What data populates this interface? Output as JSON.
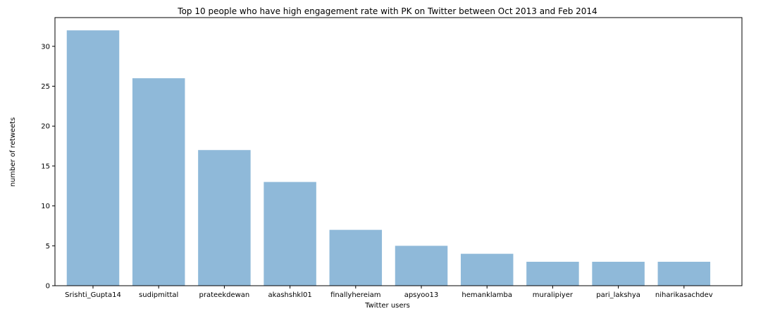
{
  "chart_data": {
    "type": "bar",
    "title": "Top 10 people who have high engagement rate with PK on Twitter between Oct 2013 and Feb 2014",
    "xlabel": "Twitter users",
    "ylabel": "number of retweets",
    "categories": [
      "Srishti_Gupta14",
      "sudipmittal",
      "prateekdewan",
      "akashshkl01",
      "finallyhereiam",
      "apsyoo13",
      "hemanklamba",
      "muralipiyer",
      "pari_lakshya",
      "niharikasachdev"
    ],
    "values": [
      32,
      26,
      17,
      13,
      7,
      5,
      4,
      3,
      3,
      3
    ],
    "ylim": [
      0,
      33.6
    ],
    "yticks": [
      0,
      5,
      10,
      15,
      20,
      25,
      30
    ],
    "bar_color": "#8fb9d9",
    "grid": false,
    "legend": "none"
  }
}
